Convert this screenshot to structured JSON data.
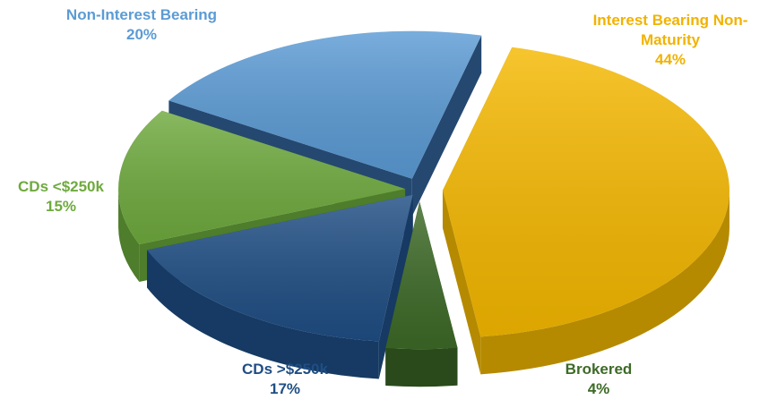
{
  "chart_data": {
    "type": "pie",
    "title": "",
    "categories": [
      "Interest Bearing Non-Maturity",
      "Brokered",
      "CDs >$250k",
      "CDs <$250k",
      "Non-Interest Bearing"
    ],
    "values": [
      44,
      4,
      17,
      15,
      20
    ],
    "value_labels": [
      "44%",
      "4%",
      "17%",
      "15%",
      "20%"
    ],
    "label_lines": [
      [
        "Interest Bearing Non-",
        "Maturity",
        "44%"
      ],
      [
        "Brokered",
        "4%"
      ],
      [
        "CDs >$250k",
        "17%"
      ],
      [
        "CDs <$250k",
        "15%"
      ],
      [
        "Non-Interest Bearing",
        "20%"
      ]
    ],
    "colors": [
      "#F5B800",
      "#3D6A27",
      "#1F4E84",
      "#6FAA3E",
      "#5B9BD5"
    ],
    "side_colors": [
      "#B58A00",
      "#2A4A1B",
      "#163A63",
      "#4E7D2B",
      "#254870"
    ],
    "label_colors": [
      "#F2B200",
      "#3D6A27",
      "#1F4E84",
      "#6FAA3E",
      "#5B9BD5"
    ],
    "exploded": true,
    "three_d": true,
    "legend": "none"
  }
}
